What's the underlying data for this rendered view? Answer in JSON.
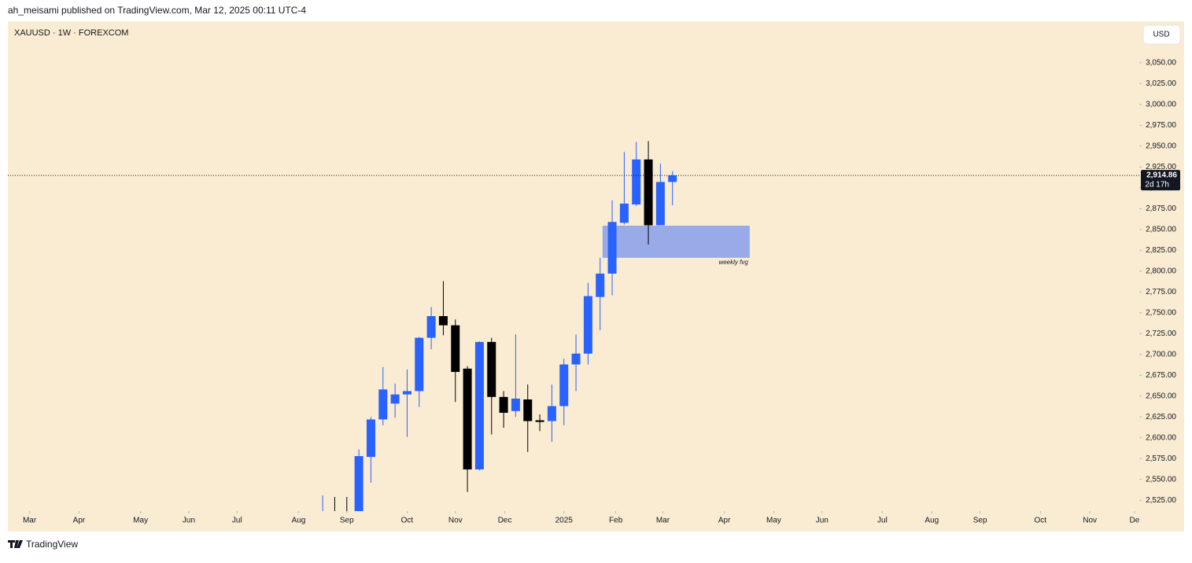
{
  "header": {
    "text": "ah_meisami published on TradingView.com, Mar 12, 2025 00:11 UTC-4"
  },
  "footer": {
    "brand": "TradingView"
  },
  "chart_data": {
    "type": "candlestick",
    "symbol": "XAUUSD · 1W · FOREXCOM",
    "currency": "USD",
    "x": [
      0,
      1,
      2,
      3,
      4,
      5,
      6,
      7,
      8,
      9,
      10,
      11,
      12,
      13,
      14,
      15,
      16,
      17,
      18,
      19,
      20,
      21,
      22,
      23,
      24,
      25,
      26,
      27,
      28,
      29
    ],
    "open": [
      2500,
      2510,
      2500,
      2497,
      2577,
      2622,
      2641,
      2652,
      2656,
      2720,
      2746,
      2735,
      2683,
      2562,
      2715,
      2649,
      2632,
      2646,
      2621,
      2620,
      2638,
      2688,
      2701,
      2769,
      2797,
      2858,
      2880,
      2934,
      2855,
      2907
    ],
    "high": [
      2531,
      2529,
      2529,
      2586,
      2625,
      2685,
      2665,
      2682,
      2721,
      2757,
      2788,
      2742,
      2686,
      2716,
      2720,
      2656,
      2724,
      2664,
      2628,
      2664,
      2695,
      2724,
      2786,
      2816,
      2885,
      2943,
      2955,
      2956,
      2929,
      2920
    ],
    "low": [
      2470,
      2470,
      2471,
      2486,
      2546,
      2615,
      2624,
      2601,
      2637,
      2706,
      2723,
      2643,
      2535,
      2561,
      2604,
      2612,
      2625,
      2583,
      2608,
      2595,
      2615,
      2656,
      2688,
      2729,
      2771,
      2856,
      2878,
      2832,
      2856,
      2879
    ],
    "close": [
      2505,
      2500,
      2497,
      2578,
      2622,
      2658,
      2652,
      2656,
      2720,
      2746,
      2735,
      2679,
      2562,
      2715,
      2649,
      2630,
      2647,
      2620,
      2619,
      2638,
      2688,
      2701,
      2770,
      2797,
      2859,
      2881,
      2934,
      2855,
      2907,
      2914.86
    ],
    "up_color": "#2962ff",
    "down_color": "#000000",
    "xlim": [
      -26.1,
      67.7
    ],
    "xticks": [
      {
        "value": -24.3,
        "label": "Mar"
      },
      {
        "value": -20.2,
        "label": "Apr"
      },
      {
        "value": -15.1,
        "label": "May"
      },
      {
        "value": -11.1,
        "label": "Jun"
      },
      {
        "value": -7.1,
        "label": "Jul"
      },
      {
        "value": -2.0,
        "label": "Aug"
      },
      {
        "value": 2.0,
        "label": "Sep"
      },
      {
        "value": 7.0,
        "label": "Oct"
      },
      {
        "value": 11.0,
        "label": "Nov"
      },
      {
        "value": 15.1,
        "label": "Dec"
      },
      {
        "value": 20.0,
        "label": "2025"
      },
      {
        "value": 24.3,
        "label": "Feb"
      },
      {
        "value": 28.2,
        "label": "Mar"
      },
      {
        "value": 33.3,
        "label": "Apr"
      },
      {
        "value": 37.4,
        "label": "May"
      },
      {
        "value": 41.4,
        "label": "Jun"
      },
      {
        "value": 46.4,
        "label": "Jul"
      },
      {
        "value": 50.5,
        "label": "Aug"
      },
      {
        "value": 54.5,
        "label": "Sep"
      },
      {
        "value": 59.5,
        "label": "Oct"
      },
      {
        "value": 63.6,
        "label": "Nov"
      },
      {
        "value": 67.3,
        "label": "De"
      }
    ],
    "ylim": [
      2512,
      3098
    ],
    "yticks": [
      {
        "value": 2525,
        "label": "2,525.00"
      },
      {
        "value": 2550,
        "label": "2,550.00"
      },
      {
        "value": 2575,
        "label": "2,575.00"
      },
      {
        "value": 2600,
        "label": "2,600.00"
      },
      {
        "value": 2625,
        "label": "2,625.00"
      },
      {
        "value": 2650,
        "label": "2,650.00"
      },
      {
        "value": 2675,
        "label": "2,675.00"
      },
      {
        "value": 2700,
        "label": "2,700.00"
      },
      {
        "value": 2725,
        "label": "2,725.00"
      },
      {
        "value": 2750,
        "label": "2,750.00"
      },
      {
        "value": 2775,
        "label": "2,775.00"
      },
      {
        "value": 2800,
        "label": "2,800.00"
      },
      {
        "value": 2825,
        "label": "2,825.00"
      },
      {
        "value": 2850,
        "label": "2,850.00"
      },
      {
        "value": 2875,
        "label": "2,875.00"
      },
      {
        "value": 2900,
        "label": "2,900.00"
      },
      {
        "value": 2925,
        "label": "2,925.00"
      },
      {
        "value": 2950,
        "label": "2,950.00"
      },
      {
        "value": 2975,
        "label": "2,975.00"
      },
      {
        "value": 3000,
        "label": "3,000.00"
      },
      {
        "value": 3025,
        "label": "3,025.00"
      },
      {
        "value": 3050,
        "label": "3,050.00"
      }
    ],
    "last_price": {
      "value": 2914.86,
      "label": "2,914.86",
      "countdown": "2d 17h"
    },
    "zone": {
      "label": "weekly fvg",
      "x": [
        23.2,
        35.4
      ],
      "y": [
        2816,
        2854.5
      ],
      "color": "#6d8ff0"
    }
  }
}
